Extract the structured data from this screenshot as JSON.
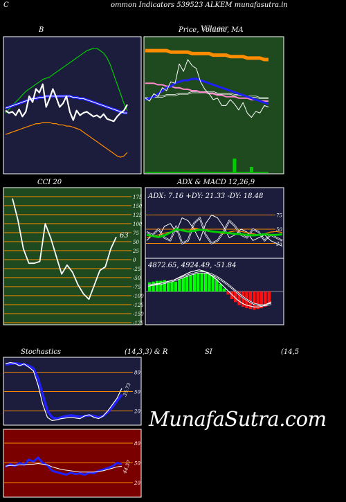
{
  "page": {
    "corner_letter": "C",
    "title": "ommon  Indicators 539523 ALKEM munafasutra.in",
    "watermark": "MunafaSutra.com"
  },
  "colors": {
    "navy_panel": "#1c1c3c",
    "green_panel": "#1f4a1f",
    "maroon_panel": "#7a0000",
    "orange": "#ff8c00",
    "blue": "#2020ff",
    "green": "#00cc00"
  },
  "chart_data": [
    {
      "id": "bollinger",
      "type": "line",
      "title": "B",
      "series": [
        {
          "role": "upper",
          "values": [
            8,
            11,
            14,
            17,
            20,
            23,
            26,
            28,
            30,
            32,
            34,
            36,
            37,
            38,
            40,
            42,
            44,
            46,
            48,
            50,
            52,
            54,
            56,
            58,
            60,
            61,
            62,
            62,
            60,
            58,
            54,
            48,
            40,
            32,
            24,
            16,
            10
          ]
        },
        {
          "role": "price",
          "values": [
            10,
            8,
            9,
            6,
            11,
            5,
            9,
            22,
            17,
            28,
            25,
            32,
            13,
            20,
            28,
            21,
            13,
            16,
            22,
            9,
            2,
            10,
            6,
            8,
            9,
            7,
            5,
            6,
            4,
            7,
            3,
            2,
            1,
            5,
            8,
            10,
            15
          ]
        },
        {
          "role": "mid",
          "values": [
            12,
            13,
            14,
            15,
            16,
            17,
            18,
            19,
            20,
            20,
            21,
            21,
            22,
            22,
            22,
            22,
            22,
            22,
            22,
            22,
            21,
            21,
            20,
            20,
            19,
            18,
            17,
            16,
            15,
            14,
            13,
            12,
            11,
            10,
            9,
            8,
            8
          ]
        },
        {
          "role": "lower",
          "values": [
            -10,
            -9,
            -8,
            -7,
            -6,
            -5,
            -4,
            -3,
            -2,
            -1,
            -1,
            0,
            0,
            0,
            -1,
            -1,
            -2,
            -2,
            -3,
            -3,
            -4,
            -5,
            -6,
            -8,
            -10,
            -12,
            -14,
            -16,
            -18,
            -20,
            -22,
            -24,
            -26,
            -28,
            -29,
            -28,
            -25
          ]
        }
      ]
    },
    {
      "id": "price_ma",
      "type": "line",
      "title": "Price,  Volume,  MA",
      "overlay_title": "Villager",
      "series": [
        {
          "role": "long-ma",
          "values": [
            62,
            62,
            62,
            62,
            62,
            62,
            61,
            61,
            61,
            61,
            61,
            60,
            60,
            60,
            60,
            60,
            59,
            59,
            59,
            59,
            58,
            58,
            58,
            58,
            57,
            57,
            57,
            57,
            56,
            56
          ]
        },
        {
          "role": "price",
          "values": [
            30,
            28,
            33,
            31,
            37,
            35,
            41,
            40,
            53,
            48,
            56,
            52,
            50,
            41,
            36,
            33,
            29,
            30,
            25,
            25,
            29,
            26,
            22,
            27,
            20,
            17,
            21,
            20,
            25,
            24
          ]
        },
        {
          "role": "ma-blue",
          "values": [
            29,
            30,
            31,
            33,
            35,
            37,
            38,
            40,
            41,
            42,
            42,
            43,
            43,
            42,
            41,
            40,
            39,
            38,
            37,
            36,
            35,
            34,
            33,
            32,
            31,
            30,
            29,
            28,
            27,
            26
          ]
        },
        {
          "role": "ma-pink",
          "values": [
            40,
            40,
            40,
            39,
            39,
            38,
            38,
            37,
            37,
            36,
            36,
            35,
            35,
            34,
            34,
            33,
            33,
            32,
            32,
            31,
            31,
            31,
            30,
            30,
            30,
            29,
            29,
            28,
            28,
            28
          ]
        },
        {
          "role": "ma-white",
          "values": [
            30,
            30,
            31,
            31,
            31,
            32,
            32,
            32,
            33,
            33,
            33,
            34,
            34,
            34,
            34,
            34,
            34,
            33,
            33,
            33,
            33,
            32,
            32,
            32,
            31,
            31,
            31,
            30,
            30,
            30
          ]
        }
      ],
      "volume": [
        0,
        0,
        0,
        0,
        0,
        0,
        0,
        0,
        0,
        0,
        0,
        0,
        0,
        0,
        0,
        0,
        0,
        0,
        0,
        0,
        0,
        20,
        0,
        0,
        0,
        8,
        0,
        0,
        0,
        0
      ]
    },
    {
      "id": "cci",
      "type": "line",
      "title": "CCI 20",
      "ylim": [
        -175,
        175
      ],
      "tick_labels": [
        "175",
        "150",
        "125",
        "100",
        "75",
        "50",
        "25",
        "0",
        "-25",
        "-50",
        "-75",
        "-100",
        "-125",
        "-150",
        "-175"
      ],
      "last_label": "63",
      "values": [
        170,
        110,
        30,
        -10,
        -10,
        -5,
        100,
        60,
        10,
        -40,
        -15,
        -35,
        -70,
        -95,
        -110,
        -70,
        -30,
        -20,
        30,
        63
      ]
    },
    {
      "id": "adx",
      "type": "line",
      "title": "ADX  & MACD 12,26,9",
      "readout": "ADX: 7.16  +DY: 21.33 -DY: 18.48",
      "ylim": [
        0,
        100
      ],
      "tick_labels": [
        "75",
        "50",
        "25"
      ],
      "series": [
        {
          "role": "adx",
          "values": [
            40,
            38,
            36,
            39,
            44,
            50,
            48,
            46,
            47,
            49,
            48,
            46,
            45,
            44,
            43,
            42,
            41,
            40,
            39,
            40,
            41,
            40,
            40,
            41
          ]
        },
        {
          "role": "plus-di",
          "values": [
            30,
            40,
            35,
            55,
            60,
            45,
            70,
            65,
            50,
            30,
            60,
            75,
            70,
            55,
            35,
            40,
            50,
            45,
            30,
            35,
            40,
            30,
            25,
            20
          ]
        },
        {
          "role": "minus-di",
          "values": [
            45,
            40,
            50,
            35,
            30,
            55,
            25,
            30,
            60,
            70,
            40,
            25,
            30,
            45,
            65,
            55,
            40,
            35,
            50,
            45,
            30,
            40,
            35,
            30
          ]
        },
        {
          "role": "orange-di",
          "values": [
            35,
            38,
            40,
            43,
            45,
            50,
            48,
            46,
            52,
            50,
            48,
            46,
            44,
            42,
            45,
            47,
            46,
            44,
            42,
            40,
            42,
            45,
            46,
            44
          ]
        }
      ]
    },
    {
      "id": "macd",
      "type": "bar",
      "readout": "4872.65,  4924.49,  -51.84",
      "histogram": [
        12,
        13,
        14,
        14,
        15,
        14,
        14,
        13,
        16,
        18,
        20,
        22,
        24,
        26,
        27,
        26,
        24,
        20,
        16,
        10,
        4,
        -4,
        -10,
        -14,
        -18,
        -20,
        -22,
        -23,
        -24,
        -23,
        -22,
        -20,
        -17
      ],
      "series": [
        {
          "role": "macd",
          "values": [
            10,
            12,
            14,
            16,
            18,
            20,
            22,
            26,
            30,
            34,
            38,
            40,
            42,
            40,
            36,
            30,
            24,
            16,
            8,
            0,
            -8,
            -16,
            -22,
            -26,
            -28,
            -30,
            -30,
            -28,
            -24,
            -20
          ]
        },
        {
          "role": "signal",
          "values": [
            12,
            13,
            14,
            15,
            17,
            19,
            21,
            24,
            27,
            30,
            33,
            35,
            37,
            37,
            36,
            33,
            29,
            24,
            18,
            12,
            5,
            -2,
            -9,
            -15,
            -20,
            -24,
            -26,
            -27,
            -26,
            -24
          ]
        }
      ]
    },
    {
      "id": "stochastics",
      "type": "line",
      "title": "Stochastics",
      "title_params": "(14,3,3) & R",
      "ylim": [
        0,
        100
      ],
      "tick_labels": [
        "80",
        "50",
        "20"
      ],
      "last_label": "35.73",
      "series": [
        {
          "role": "k",
          "values": [
            93,
            95,
            94,
            90,
            93,
            88,
            82,
            60,
            30,
            10,
            5,
            6,
            8,
            9,
            10,
            9,
            8,
            12,
            14,
            10,
            8,
            12,
            20,
            30,
            40,
            55
          ]
        },
        {
          "role": "d",
          "values": [
            92,
            93,
            94,
            93,
            92,
            90,
            86,
            70,
            45,
            20,
            10,
            8,
            10,
            12,
            13,
            12,
            11,
            12,
            13,
            12,
            10,
            12,
            18,
            26,
            36,
            45
          ]
        }
      ]
    },
    {
      "id": "rsi",
      "type": "line",
      "title": "SI",
      "title_params": "(14,5",
      "ylim": [
        0,
        100
      ],
      "tick_labels": [
        "80",
        "50",
        "20"
      ],
      "last_label": "44.57",
      "series": [
        {
          "role": "rsi",
          "values": [
            44,
            48,
            45,
            50,
            47,
            55,
            52,
            58,
            50,
            46,
            38,
            36,
            34,
            32,
            35,
            33,
            34,
            32,
            35,
            34,
            38,
            40,
            42,
            45,
            50,
            48
          ]
        },
        {
          "role": "rsi-white",
          "values": [
            45,
            46,
            46,
            47,
            47,
            48,
            48,
            49,
            48,
            47,
            44,
            42,
            40,
            39,
            38,
            37,
            36,
            36,
            36,
            36,
            37,
            38,
            40,
            42,
            44,
            45
          ]
        }
      ]
    }
  ]
}
